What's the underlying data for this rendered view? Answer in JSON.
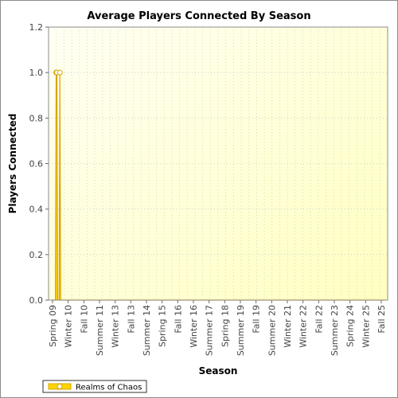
{
  "chart_data": {
    "type": "area",
    "title": "Average Players Connected By Season",
    "xlabel": "Season",
    "ylabel": "Players Connected",
    "ylim": [
      0,
      1.2
    ],
    "yticks": [
      "0.0",
      "0.2",
      "0.4",
      "0.6",
      "0.8",
      "1.0",
      "1.2"
    ],
    "grid": true,
    "legend_position": "bottom-left",
    "x_tick_labels": [
      "Spring 09",
      "Winter 10",
      "Fall 10",
      "Summer 11",
      "Winter 13",
      "Fall 13",
      "Summer 14",
      "Spring 15",
      "Fall 16",
      "Winter 16",
      "Summer 17",
      "Spring 18",
      "Summer 19",
      "Fall 19",
      "Summer 20",
      "Winter 21",
      "Winter 22",
      "Fall 22",
      "Summer 23",
      "Spring 24",
      "Winter 25",
      "Fall 25"
    ],
    "series": [
      {
        "name": "Realms of Chaos",
        "color": "#ffd400",
        "line_color": "#d9a400",
        "values": [
          0,
          0,
          0,
          0,
          0,
          0,
          0,
          1,
          1,
          0,
          0,
          0,
          1,
          0,
          0,
          0,
          0,
          0,
          0,
          0,
          0,
          0,
          0,
          0,
          0,
          0,
          0,
          0,
          0,
          0,
          0,
          0,
          0,
          0,
          0,
          0,
          0,
          0,
          0,
          0,
          0,
          0,
          0,
          0,
          0,
          0,
          0,
          0,
          0,
          0,
          0,
          0,
          0,
          0,
          0,
          0,
          0,
          0,
          0,
          0,
          0,
          0,
          0,
          0,
          0,
          0,
          0,
          0,
          0,
          0,
          0,
          0,
          0,
          0,
          0,
          0,
          0,
          0,
          0,
          0,
          0,
          0,
          0,
          0,
          0,
          0,
          0,
          0,
          0,
          0,
          0,
          0,
          0,
          0,
          0,
          0,
          0,
          0,
          0,
          0,
          0,
          0,
          0,
          0,
          0,
          0,
          0,
          0,
          0,
          0,
          0,
          0,
          0,
          0,
          0,
          0,
          0,
          0,
          0,
          0,
          0,
          0,
          0,
          0,
          0,
          0,
          0,
          0,
          0,
          0,
          0,
          0,
          0,
          0,
          0,
          0,
          0,
          0,
          0,
          0,
          0,
          0,
          0,
          0,
          0,
          0,
          0,
          0,
          0,
          0,
          0,
          0,
          0,
          0,
          0,
          0,
          0,
          0,
          0,
          0,
          0,
          0,
          0,
          0,
          0,
          0,
          0,
          0,
          0,
          0,
          0,
          0,
          0,
          0,
          0,
          0,
          0,
          0,
          0,
          0,
          0,
          0,
          0,
          0,
          0,
          0,
          0,
          0,
          0,
          0,
          0,
          0,
          0,
          0,
          0,
          0,
          0,
          0,
          0,
          0,
          0,
          0,
          0,
          0,
          0,
          0,
          0,
          0,
          0,
          0,
          0,
          0,
          0,
          0,
          0,
          0,
          0,
          0,
          0,
          0,
          0,
          0,
          0,
          0,
          0,
          0,
          0,
          0,
          0,
          0,
          0,
          0,
          0,
          0,
          0,
          0,
          0,
          0,
          0,
          0,
          0,
          0,
          0,
          0,
          0,
          0,
          0,
          0,
          0,
          0,
          0,
          0,
          0,
          0,
          0,
          0,
          0,
          0,
          0,
          0,
          0,
          0,
          0,
          0,
          0,
          0,
          0,
          0,
          0,
          0,
          0,
          0,
          0,
          0,
          0,
          0,
          0,
          0,
          0,
          0,
          0,
          0,
          0,
          0,
          0,
          0,
          0,
          0,
          0,
          0,
          0,
          0,
          0,
          0,
          0,
          0,
          0,
          0,
          0,
          0,
          0,
          0,
          0,
          0,
          0,
          0,
          0,
          0,
          0,
          0,
          0,
          0,
          0,
          0,
          0,
          0,
          0,
          0,
          0,
          0,
          0,
          0,
          0,
          0,
          0,
          0,
          0,
          0,
          0,
          0,
          0,
          0,
          0,
          0,
          0,
          0,
          0,
          0,
          0,
          0,
          0,
          0,
          0,
          0,
          0,
          0,
          0,
          0,
          0,
          0,
          0,
          0,
          0,
          0,
          0,
          0,
          0,
          0,
          0,
          0,
          0,
          0,
          0,
          0,
          0,
          0,
          0,
          0,
          0,
          0,
          0,
          0,
          0,
          0,
          0,
          0,
          0,
          0,
          0,
          0,
          0,
          0,
          0,
          0,
          0,
          0,
          0,
          0,
          0,
          0,
          0,
          0,
          0,
          0,
          0,
          0,
          0,
          0,
          0,
          0,
          0,
          0,
          0,
          0,
          0,
          0,
          0,
          0,
          0,
          0,
          0,
          0,
          0,
          0,
          0,
          0,
          0,
          0,
          0,
          0,
          0,
          0,
          0,
          0,
          0,
          0,
          0,
          0,
          0,
          0,
          0,
          0,
          0,
          0,
          0,
          0,
          0,
          0,
          0,
          0,
          0,
          0,
          0,
          0,
          0,
          0,
          0,
          0,
          0,
          0
        ]
      }
    ]
  }
}
